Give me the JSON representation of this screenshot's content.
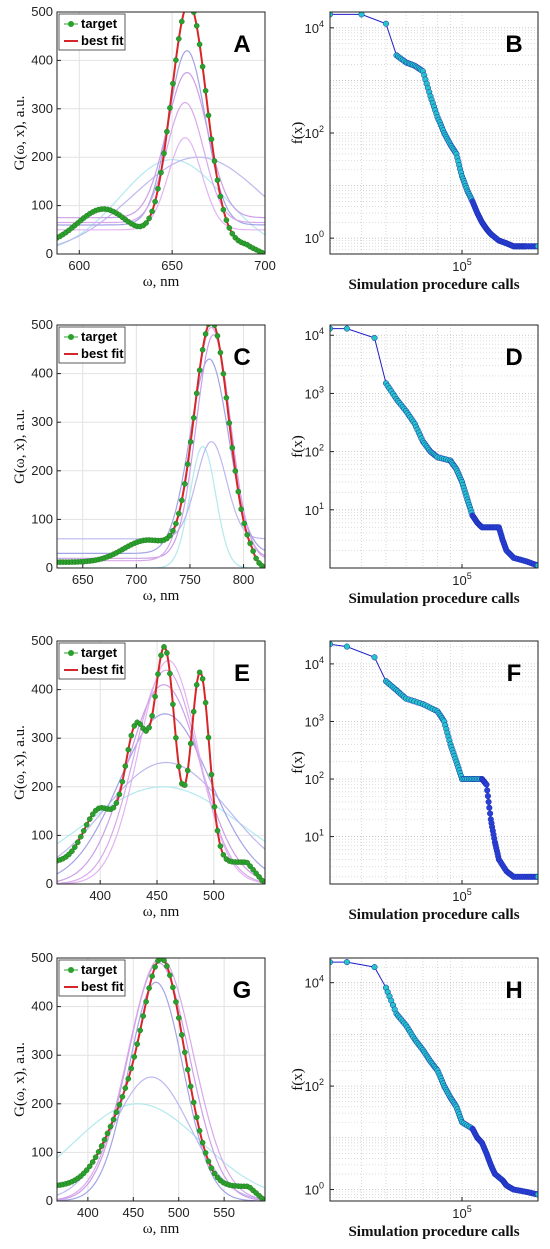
{
  "colors": {
    "target_marker": "#2ca02c",
    "best_fit": "#d62728",
    "search_line": "#1f1fc8",
    "search_marker": "#25c4c8",
    "population_palette": [
      "#aee8ee",
      "#b8b4ee",
      "#9e9ee6",
      "#c89ae6",
      "#d6a3ea",
      "#e0b0f0"
    ]
  },
  "chart_data": [
    {
      "panel": "A",
      "type": "line",
      "ylabel": "G(ω, x),  a.u.",
      "xlabel": "ω, nm",
      "xlim": [
        588,
        700
      ],
      "ylim": [
        0,
        500
      ],
      "xticks": [
        600,
        650,
        700
      ],
      "yticks": [
        0,
        100,
        200,
        300,
        400,
        500
      ],
      "grid": true,
      "legend": {
        "position": "top-left",
        "entries": [
          "target",
          "best fit"
        ]
      },
      "target_peaks": [
        {
          "c": 613,
          "a": 75,
          "w": 14
        },
        {
          "c": 659,
          "a": 500,
          "w": 9.5
        }
      ],
      "target_baseline": 18,
      "target_fade": 10,
      "population_peaks": [
        {
          "c": 650,
          "a": 195,
          "w": 28,
          "b": 0
        },
        {
          "c": 664,
          "a": 200,
          "w": 35,
          "b": 0
        },
        {
          "c": 658,
          "a": 360,
          "w": 10,
          "b": 60
        },
        {
          "c": 658,
          "a": 300,
          "w": 11,
          "b": 75
        },
        {
          "c": 657,
          "a": 248,
          "w": 10,
          "b": 65
        },
        {
          "c": 657,
          "a": 190,
          "w": 9,
          "b": 50
        }
      ]
    },
    {
      "panel": "B",
      "type": "line",
      "ylabel": "f(x)",
      "xlabel": "Simulation procedure calls",
      "xtick_label": "10^5",
      "log_y": true,
      "log_x": true,
      "xlim": [
        30000,
        200000
      ],
      "ylim": [
        0.5,
        20000
      ],
      "y_tick_exponents": [
        0,
        2,
        4
      ],
      "grid": true,
      "points": [
        [
          30000,
          18000
        ],
        [
          40000,
          18000
        ],
        [
          50000,
          12000
        ],
        [
          55000,
          3000
        ],
        [
          60000,
          2200
        ],
        [
          65000,
          1900
        ],
        [
          70000,
          1500
        ],
        [
          75000,
          500
        ],
        [
          80000,
          200
        ],
        [
          85000,
          100
        ],
        [
          90000,
          60
        ],
        [
          95000,
          40
        ],
        [
          100000,
          15
        ],
        [
          105000,
          8
        ],
        [
          110000,
          5
        ],
        [
          115000,
          3
        ],
        [
          120000,
          2
        ],
        [
          125000,
          1.5
        ],
        [
          130000,
          1.2
        ],
        [
          140000,
          0.9
        ],
        [
          150000,
          0.8
        ],
        [
          160000,
          0.7
        ],
        [
          170000,
          0.7
        ],
        [
          180000,
          0.7
        ],
        [
          200000,
          0.7
        ]
      ]
    },
    {
      "panel": "C",
      "type": "line",
      "ylabel": "G(ω, x),  a.u.",
      "xlabel": "ω, nm",
      "xlim": [
        626,
        820
      ],
      "ylim": [
        0,
        500
      ],
      "xticks": [
        650,
        700,
        750,
        800
      ],
      "yticks": [
        0,
        100,
        200,
        300,
        400,
        500
      ],
      "grid": true,
      "legend": {
        "position": "top-left",
        "entries": [
          "target",
          "best fit"
        ]
      },
      "target_peaks": [
        {
          "c": 710,
          "a": 45,
          "w": 22
        },
        {
          "c": 770,
          "a": 495,
          "w": 16
        }
      ],
      "target_baseline": 12,
      "target_fade": 12,
      "population_peaks": [
        {
          "c": 762,
          "a": 250,
          "w": 12,
          "b": 0
        },
        {
          "c": 770,
          "a": 200,
          "w": 14,
          "b": 60
        },
        {
          "c": 768,
          "a": 400,
          "w": 18,
          "b": 30
        },
        {
          "c": 772,
          "a": 460,
          "w": 16,
          "b": 20
        },
        {
          "c": 770,
          "a": 480,
          "w": 17,
          "b": 15
        }
      ]
    },
    {
      "panel": "D",
      "type": "line",
      "ylabel": "f(x)",
      "xlabel": "Simulation procedure calls",
      "xtick_label": "10^5",
      "log_y": true,
      "log_x": true,
      "xlim": [
        30000,
        200000
      ],
      "ylim": [
        1,
        15000
      ],
      "y_tick_exponents": [
        1,
        2,
        3,
        4
      ],
      "grid": true,
      "points": [
        [
          30000,
          13000
        ],
        [
          35000,
          13000
        ],
        [
          45000,
          9000
        ],
        [
          50000,
          1500
        ],
        [
          55000,
          800
        ],
        [
          60000,
          500
        ],
        [
          65000,
          300
        ],
        [
          70000,
          150
        ],
        [
          75000,
          100
        ],
        [
          80000,
          80
        ],
        [
          90000,
          70
        ],
        [
          95000,
          50
        ],
        [
          100000,
          30
        ],
        [
          105000,
          15
        ],
        [
          110000,
          8
        ],
        [
          115000,
          6
        ],
        [
          120000,
          5
        ],
        [
          130000,
          5
        ],
        [
          140000,
          5
        ],
        [
          145000,
          3
        ],
        [
          150000,
          2
        ],
        [
          160000,
          1.5
        ],
        [
          180000,
          1.3
        ],
        [
          200000,
          1.1
        ]
      ]
    },
    {
      "panel": "E",
      "type": "line",
      "ylabel": "G(ω, x),  a.u.",
      "xlabel": "ω, nm",
      "xlim": [
        362,
        545
      ],
      "ylim": [
        0,
        500
      ],
      "xticks": [
        400,
        450,
        500
      ],
      "yticks": [
        0,
        100,
        200,
        300,
        400,
        500
      ],
      "grid": true,
      "legend": {
        "position": "top-left",
        "entries": [
          "target",
          "best fit"
        ]
      },
      "target_peaks": [
        {
          "c": 400,
          "a": 110,
          "w": 14
        },
        {
          "c": 432,
          "a": 270,
          "w": 10
        },
        {
          "c": 457,
          "a": 430,
          "w": 9
        },
        {
          "c": 488,
          "a": 390,
          "w": 8
        }
      ],
      "target_baseline": 45,
      "target_fade": 16,
      "population_peaks": [
        {
          "c": 455,
          "a": 200,
          "w": 70,
          "b": 0
        },
        {
          "c": 458,
          "a": 250,
          "w": 55,
          "b": 0
        },
        {
          "c": 457,
          "a": 350,
          "w": 40,
          "b": 0
        },
        {
          "c": 456,
          "a": 410,
          "w": 32,
          "b": 0
        },
        {
          "c": 458,
          "a": 440,
          "w": 28,
          "b": 0
        },
        {
          "c": 460,
          "a": 460,
          "w": 26,
          "b": 0
        }
      ]
    },
    {
      "panel": "F",
      "type": "line",
      "ylabel": "f(x)",
      "xlabel": "Simulation procedure calls",
      "xtick_label": "10^5",
      "log_y": true,
      "log_x": true,
      "xlim": [
        30000,
        200000
      ],
      "ylim": [
        1.5,
        25000
      ],
      "y_tick_exponents": [
        1,
        2,
        3,
        4
      ],
      "grid": true,
      "points": [
        [
          30000,
          22000
        ],
        [
          35000,
          20000
        ],
        [
          45000,
          13000
        ],
        [
          50000,
          5000
        ],
        [
          55000,
          3500
        ],
        [
          60000,
          2500
        ],
        [
          70000,
          2000
        ],
        [
          80000,
          1500
        ],
        [
          85000,
          1000
        ],
        [
          90000,
          400
        ],
        [
          95000,
          200
        ],
        [
          100000,
          100
        ],
        [
          110000,
          100
        ],
        [
          120000,
          100
        ],
        [
          125000,
          80
        ],
        [
          130000,
          20
        ],
        [
          135000,
          8
        ],
        [
          140000,
          4
        ],
        [
          150000,
          2.5
        ],
        [
          160000,
          2
        ],
        [
          180000,
          2
        ],
        [
          200000,
          2
        ]
      ]
    },
    {
      "panel": "G",
      "type": "line",
      "ylabel": "G(ω, x),  a.u.",
      "xlabel": "ω, nm",
      "xlim": [
        366,
        595
      ],
      "ylim": [
        0,
        500
      ],
      "xticks": [
        400,
        450,
        500,
        550
      ],
      "yticks": [
        0,
        100,
        200,
        300,
        400,
        500
      ],
      "grid": true,
      "legend": {
        "position": "top-left",
        "entries": [
          "target",
          "best fit"
        ]
      },
      "target_peaks": [
        {
          "c": 450,
          "a": 180,
          "w": 28
        },
        {
          "c": 480,
          "a": 310,
          "w": 18
        },
        {
          "c": 505,
          "a": 150,
          "w": 18
        }
      ],
      "target_baseline": 30,
      "target_fade": 18,
      "population_peaks": [
        {
          "c": 455,
          "a": 200,
          "w": 70,
          "b": 0
        },
        {
          "c": 470,
          "a": 255,
          "w": 42,
          "b": 0
        },
        {
          "c": 475,
          "a": 450,
          "w": 30,
          "b": 0
        },
        {
          "c": 478,
          "a": 490,
          "w": 34,
          "b": 0
        },
        {
          "c": 480,
          "a": 500,
          "w": 36,
          "b": 0
        }
      ]
    },
    {
      "panel": "H",
      "type": "line",
      "ylabel": "f(x)",
      "xlabel": "Simulation procedure calls",
      "xtick_label": "10^5",
      "log_y": true,
      "log_x": true,
      "xlim": [
        30000,
        200000
      ],
      "ylim": [
        0.6,
        30000
      ],
      "y_tick_exponents": [
        0,
        2,
        4
      ],
      "grid": true,
      "points": [
        [
          30000,
          25000
        ],
        [
          35000,
          25000
        ],
        [
          45000,
          20000
        ],
        [
          50000,
          8000
        ],
        [
          55000,
          2500
        ],
        [
          60000,
          1500
        ],
        [
          65000,
          800
        ],
        [
          70000,
          500
        ],
        [
          75000,
          300
        ],
        [
          80000,
          200
        ],
        [
          85000,
          100
        ],
        [
          90000,
          60
        ],
        [
          95000,
          40
        ],
        [
          100000,
          20
        ],
        [
          110000,
          15
        ],
        [
          115000,
          10
        ],
        [
          120000,
          8
        ],
        [
          125000,
          5
        ],
        [
          130000,
          3
        ],
        [
          135000,
          2
        ],
        [
          145000,
          1.5
        ],
        [
          150000,
          1.2
        ],
        [
          160000,
          1
        ],
        [
          180000,
          0.9
        ],
        [
          200000,
          0.8
        ]
      ]
    }
  ]
}
